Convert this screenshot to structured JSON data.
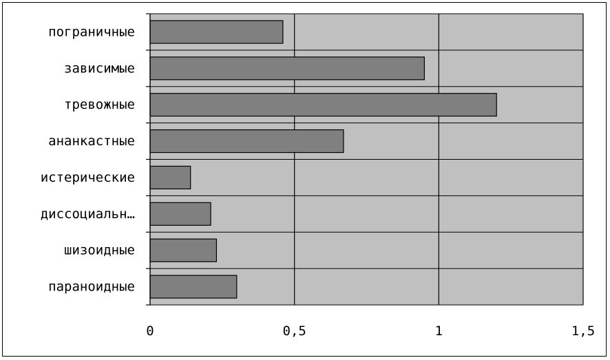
{
  "chart_data": {
    "type": "bar",
    "orientation": "horizontal",
    "title": "",
    "xlabel": "",
    "ylabel": "",
    "categories": [
      "пограничные",
      "зависимые",
      "тревожные",
      "ананкастные",
      "истерические",
      "диссоциальн…",
      "шизоидные",
      "параноидные"
    ],
    "values": [
      0.46,
      0.95,
      1.2,
      0.67,
      0.14,
      0.21,
      0.23,
      0.3
    ],
    "xlim": [
      0,
      1.5
    ],
    "x_ticks": [
      0,
      0.5,
      1,
      1.5
    ],
    "x_tick_labels": [
      "0",
      "0,5",
      "1",
      "1,5"
    ],
    "grid": "vertical",
    "legend": "none",
    "colors": {
      "plot_background": "#c0c0c0",
      "bar_fill": "#808080",
      "bar_stroke": "#000000",
      "grid_line": "#000000",
      "text": "#000000"
    }
  }
}
